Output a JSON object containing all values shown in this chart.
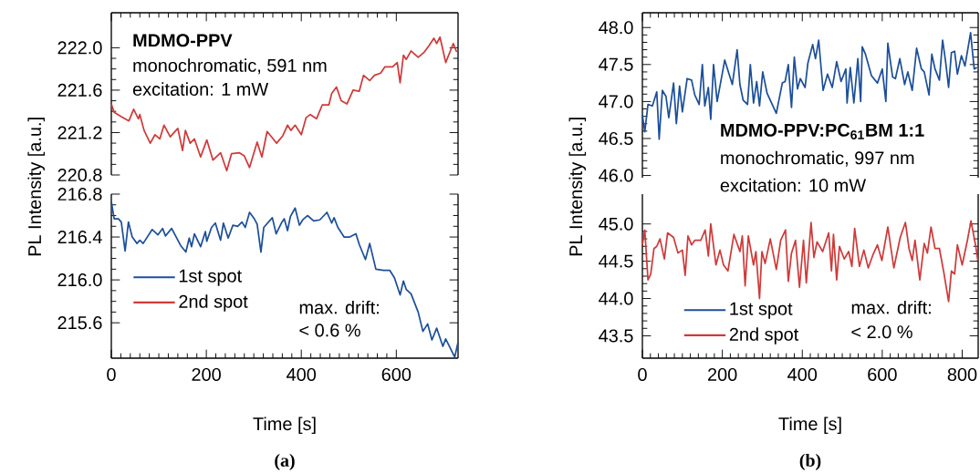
{
  "chart_data": [
    {
      "type": "line",
      "xlim": [
        0,
        730
      ],
      "ylim": [
        220.8,
        222.33
      ],
      "xticks": [
        0,
        200,
        400,
        600
      ],
      "yticks": [
        {
          "value": 220.8,
          "label": "220.8"
        },
        {
          "value": 221.2,
          "label": "221.2"
        },
        {
          "value": 221.6,
          "label": "221.6"
        },
        {
          "value": 222.0,
          "label": "222.0"
        }
      ],
      "tick_labels": "y",
      "annotations": [
        "MDMO-PPV",
        "monochromatic, 591 nm",
        "excitation: 1 mW"
      ],
      "series": [
        {
          "name": "2nd spot",
          "color": "#cf3a3a",
          "x": [
            0,
            6,
            21,
            37,
            47,
            57,
            60,
            69,
            82,
            92,
            102,
            111,
            124,
            140,
            150,
            156,
            166,
            175,
            188,
            201,
            214,
            230,
            243,
            253,
            269,
            280,
            291,
            307,
            317,
            328,
            339,
            348,
            361,
            371,
            378,
            387,
            400,
            410,
            419,
            432,
            444,
            458,
            464,
            474,
            484,
            496,
            509,
            522,
            531,
            544,
            554,
            567,
            576,
            592,
            602,
            608,
            615,
            621,
            631,
            646,
            659,
            669,
            679,
            685,
            692,
            704,
            720,
            727
          ],
          "values": [
            221.47,
            221.39,
            221.35,
            221.31,
            221.42,
            221.33,
            221.37,
            221.22,
            221.1,
            221.18,
            221.14,
            221.27,
            221.16,
            221.24,
            221.03,
            221.22,
            221.1,
            221.14,
            220.97,
            221.13,
            220.94,
            221.01,
            220.84,
            221.0,
            221.01,
            220.98,
            220.87,
            221.11,
            220.97,
            221.21,
            221.15,
            221.1,
            221.17,
            221.27,
            221.22,
            221.27,
            221.18,
            221.34,
            221.37,
            221.33,
            221.46,
            221.46,
            221.57,
            221.63,
            221.5,
            221.47,
            221.6,
            221.59,
            221.74,
            221.69,
            221.74,
            221.76,
            221.82,
            221.82,
            221.86,
            221.67,
            221.93,
            221.89,
            221.97,
            221.91,
            221.96,
            222.02,
            222.09,
            222.04,
            222.1,
            221.86,
            222.04,
            221.96
          ]
        }
      ]
    },
    {
      "type": "line",
      "xlabel": "Time [s]",
      "ylabel": "PL Intensity [a.u.]",
      "xlim": [
        0,
        730
      ],
      "ylim": [
        215.27,
        216.8
      ],
      "xticks": [
        0,
        200,
        400,
        600
      ],
      "yticks": [
        {
          "value": 215.6,
          "label": "215.6"
        },
        {
          "value": 216.0,
          "label": "216.0"
        },
        {
          "value": 216.4,
          "label": "216.4"
        },
        {
          "value": 216.8,
          "label": "216.8"
        }
      ],
      "legend": "bottom left",
      "annotations": [
        "max. drift:",
        "< 0.6 %",
        "(a)"
      ],
      "series": [
        {
          "name": "1st spot",
          "color": "#1d4f9a",
          "x": [
            0,
            6,
            15,
            21,
            29,
            36,
            44,
            54,
            60,
            67,
            86,
            98,
            108,
            114,
            127,
            146,
            157,
            164,
            169,
            175,
            188,
            198,
            201,
            211,
            219,
            230,
            236,
            246,
            256,
            266,
            275,
            282,
            291,
            301,
            307,
            315,
            321,
            339,
            347,
            358,
            364,
            371,
            377,
            387,
            396,
            403,
            413,
            426,
            439,
            454,
            464,
            469,
            477,
            490,
            502,
            515,
            522,
            535,
            544,
            557,
            573,
            586,
            596,
            608,
            615,
            621,
            631,
            646,
            656,
            666,
            675,
            685,
            698,
            704,
            714,
            723,
            730
          ],
          "values": [
            216.73,
            216.57,
            216.57,
            216.54,
            216.27,
            216.54,
            216.4,
            216.34,
            216.37,
            216.34,
            216.47,
            216.42,
            216.48,
            216.41,
            216.48,
            216.32,
            216.26,
            216.39,
            216.31,
            216.43,
            216.31,
            216.45,
            216.36,
            216.49,
            216.53,
            216.37,
            216.53,
            216.39,
            216.51,
            216.5,
            216.54,
            216.49,
            216.63,
            216.57,
            216.52,
            216.26,
            216.49,
            216.58,
            216.43,
            216.53,
            216.57,
            216.46,
            216.59,
            216.67,
            216.51,
            216.56,
            216.6,
            216.55,
            216.56,
            216.63,
            216.53,
            216.58,
            216.49,
            216.4,
            216.4,
            216.43,
            216.33,
            216.19,
            216.34,
            216.1,
            216.09,
            216.09,
            216.02,
            215.86,
            215.99,
            215.91,
            215.87,
            215.7,
            215.52,
            215.59,
            215.44,
            215.55,
            215.38,
            215.45,
            215.36,
            215.28,
            215.42
          ]
        }
      ]
    },
    {
      "type": "line",
      "xlim": [
        0,
        840
      ],
      "ylim": [
        45.97,
        48.2
      ],
      "xticks": [
        0,
        200,
        400,
        600,
        800
      ],
      "yticks": [
        {
          "value": 46.0,
          "label": "46.0"
        },
        {
          "value": 46.5,
          "label": "46.5"
        },
        {
          "value": 47.0,
          "label": "47.0"
        },
        {
          "value": 47.5,
          "label": "47.5"
        },
        {
          "value": 48.0,
          "label": "48.0"
        }
      ],
      "tick_labels": "y",
      "annotations": [
        "MDMO-PPV:PC$_{61}$BM 1:1",
        "monochromatic, 997 nm",
        "excitation: 10 mW"
      ],
      "series": [
        {
          "name": "1st spot",
          "color": "#1d4f9a",
          "x": [
            0,
            6,
            14,
            25,
            36,
            42,
            50,
            59,
            66,
            78,
            85,
            93,
            100,
            112,
            123,
            131,
            142,
            150,
            156,
            165,
            171,
            178,
            187,
            206,
            225,
            237,
            244,
            252,
            263,
            270,
            278,
            286,
            293,
            301,
            312,
            335,
            350,
            357,
            365,
            373,
            380,
            388,
            395,
            407,
            414,
            426,
            433,
            441,
            452,
            463,
            475,
            486,
            497,
            509,
            512,
            520,
            529,
            539,
            546,
            550,
            558,
            573,
            588,
            600,
            609,
            614,
            626,
            633,
            644,
            656,
            664,
            675,
            686,
            698,
            705,
            717,
            724,
            732,
            743,
            751,
            758,
            766,
            773,
            781,
            788,
            798,
            807,
            821,
            830,
            837
          ],
          "values": [
            46.82,
            46.59,
            46.96,
            46.94,
            47.13,
            46.49,
            47.15,
            47.07,
            46.78,
            47.25,
            46.7,
            47.21,
            46.86,
            47.31,
            47.29,
            47.09,
            46.96,
            47.5,
            46.94,
            47.19,
            46.76,
            47.5,
            47.0,
            47.56,
            47.23,
            47.7,
            47.23,
            47.02,
            46.96,
            47.5,
            46.98,
            47.27,
            46.94,
            47.4,
            47.11,
            46.84,
            47.25,
            47.27,
            47.5,
            46.92,
            47.6,
            47.17,
            47.31,
            47.19,
            47.52,
            47.77,
            47.58,
            47.83,
            47.15,
            47.37,
            47.19,
            47.54,
            47.27,
            47.44,
            46.98,
            47.46,
            46.98,
            47.58,
            47.0,
            47.74,
            47.64,
            47.35,
            47.25,
            47.44,
            47.0,
            47.79,
            47.33,
            47.31,
            47.58,
            47.23,
            47.4,
            47.15,
            47.72,
            47.44,
            47.4,
            47.09,
            47.64,
            47.44,
            47.29,
            47.83,
            47.56,
            47.19,
            47.66,
            47.68,
            47.37,
            47.62,
            47.48,
            47.93,
            47.44,
            47.46
          ]
        }
      ]
    },
    {
      "type": "line",
      "xlabel": "Time [s]",
      "ylabel": "PL Intensity [a.u.]",
      "xlim": [
        0,
        840
      ],
      "ylim": [
        43.2,
        45.4
      ],
      "xticks": [
        0,
        200,
        400,
        600,
        800
      ],
      "yticks": [
        {
          "value": 43.5,
          "label": "43.5"
        },
        {
          "value": 44.0,
          "label": "44.0"
        },
        {
          "value": 44.5,
          "label": "44.5"
        },
        {
          "value": 45.0,
          "label": "45.0"
        }
      ],
      "legend": "bottom left",
      "annotations": [
        "max. drift:",
        "< 2.0 %",
        "(b)"
      ],
      "series": [
        {
          "name": "2nd spot",
          "color": "#cf3a3a",
          "x": [
            0,
            6,
            14,
            21,
            29,
            36,
            44,
            55,
            63,
            78,
            89,
            100,
            107,
            114,
            123,
            131,
            146,
            157,
            165,
            171,
            184,
            194,
            203,
            214,
            229,
            244,
            250,
            257,
            265,
            278,
            284,
            293,
            299,
            307,
            320,
            335,
            346,
            358,
            365,
            373,
            383,
            393,
            403,
            410,
            422,
            429,
            437,
            451,
            466,
            473,
            478,
            486,
            493,
            505,
            516,
            524,
            531,
            543,
            554,
            565,
            577,
            588,
            599,
            614,
            629,
            645,
            658,
            667,
            675,
            682,
            694,
            705,
            713,
            722,
            732,
            743,
            754,
            766,
            773,
            781,
            788,
            800,
            813,
            822,
            834,
            839
          ],
          "values": [
            44.72,
            44.92,
            44.25,
            44.33,
            44.67,
            44.7,
            44.8,
            44.53,
            44.88,
            44.82,
            44.61,
            44.65,
            44.31,
            44.84,
            44.72,
            44.78,
            44.78,
            44.92,
            44.57,
            45.0,
            44.45,
            44.65,
            44.45,
            44.37,
            44.86,
            44.63,
            44.84,
            44.17,
            44.84,
            44.45,
            44.63,
            44.0,
            44.63,
            44.47,
            44.8,
            44.39,
            44.78,
            44.92,
            44.23,
            44.61,
            44.78,
            44.15,
            44.78,
            44.21,
            45.02,
            44.55,
            44.76,
            44.63,
            44.88,
            44.37,
            44.86,
            44.25,
            44.7,
            44.53,
            44.63,
            44.43,
            44.94,
            44.43,
            44.65,
            44.41,
            44.59,
            44.72,
            44.51,
            44.96,
            44.41,
            44.82,
            45.02,
            44.67,
            44.51,
            44.78,
            44.25,
            44.74,
            44.61,
            44.96,
            44.67,
            44.67,
            44.35,
            43.96,
            44.37,
            44.33,
            44.72,
            44.45,
            44.78,
            45.04,
            44.7,
            44.51
          ]
        }
      ]
    }
  ]
}
